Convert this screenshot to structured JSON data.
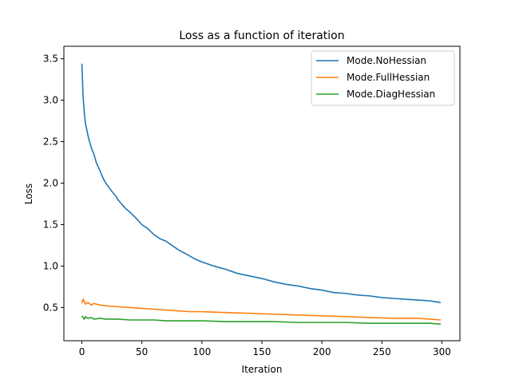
{
  "chart_data": {
    "type": "line",
    "title": "Loss as a function of iteration",
    "xlabel": "Iteration",
    "ylabel": "Loss",
    "xlim": [
      -15,
      315
    ],
    "ylim": [
      0.1,
      3.65
    ],
    "xticks": [
      0,
      50,
      100,
      150,
      200,
      250,
      300
    ],
    "yticks": [
      0.5,
      1.0,
      1.5,
      2.0,
      2.5,
      3.0,
      3.5
    ],
    "xtick_labels": [
      "0",
      "50",
      "100",
      "150",
      "200",
      "250",
      "300"
    ],
    "ytick_labels": [
      "0.5",
      "1.0",
      "1.5",
      "2.0",
      "2.5",
      "3.0",
      "3.5"
    ],
    "grid": false,
    "legend_position": "top-right",
    "series": [
      {
        "name": "Mode.NoHessian",
        "color": "#1f77b4",
        "x": [
          0,
          1,
          2,
          3,
          4,
          5,
          6,
          8,
          10,
          12,
          15,
          18,
          20,
          22,
          25,
          28,
          30,
          33,
          36,
          40,
          45,
          50,
          55,
          60,
          65,
          70,
          75,
          80,
          85,
          90,
          95,
          100,
          110,
          120,
          130,
          140,
          150,
          160,
          170,
          180,
          190,
          200,
          210,
          220,
          230,
          240,
          250,
          260,
          270,
          280,
          290,
          295,
          299
        ],
        "y": [
          3.44,
          3.05,
          2.85,
          2.72,
          2.65,
          2.58,
          2.52,
          2.42,
          2.35,
          2.25,
          2.15,
          2.05,
          2.0,
          1.96,
          1.9,
          1.85,
          1.8,
          1.75,
          1.7,
          1.65,
          1.58,
          1.5,
          1.45,
          1.38,
          1.33,
          1.3,
          1.25,
          1.2,
          1.16,
          1.12,
          1.08,
          1.05,
          1.0,
          0.96,
          0.91,
          0.88,
          0.85,
          0.81,
          0.78,
          0.76,
          0.73,
          0.71,
          0.68,
          0.67,
          0.65,
          0.64,
          0.62,
          0.61,
          0.6,
          0.59,
          0.58,
          0.57,
          0.56
        ]
      },
      {
        "name": "Mode.FullHessian",
        "color": "#ff7f0e",
        "x": [
          0,
          1,
          2,
          3,
          5,
          8,
          10,
          15,
          20,
          30,
          40,
          50,
          60,
          70,
          80,
          90,
          100,
          120,
          140,
          160,
          180,
          200,
          220,
          240,
          260,
          280,
          290,
          299
        ],
        "y": [
          0.55,
          0.6,
          0.58,
          0.54,
          0.56,
          0.53,
          0.55,
          0.53,
          0.52,
          0.51,
          0.5,
          0.49,
          0.48,
          0.47,
          0.46,
          0.45,
          0.45,
          0.44,
          0.43,
          0.42,
          0.41,
          0.4,
          0.39,
          0.38,
          0.37,
          0.37,
          0.36,
          0.35
        ]
      },
      {
        "name": "Mode.DiagHessian",
        "color": "#2ca02c",
        "x": [
          0,
          1,
          2,
          3,
          5,
          8,
          10,
          15,
          20,
          30,
          40,
          50,
          60,
          70,
          80,
          90,
          100,
          120,
          140,
          160,
          180,
          200,
          220,
          240,
          260,
          280,
          290,
          299
        ],
        "y": [
          0.4,
          0.38,
          0.36,
          0.39,
          0.37,
          0.38,
          0.36,
          0.37,
          0.36,
          0.36,
          0.35,
          0.35,
          0.35,
          0.34,
          0.34,
          0.34,
          0.34,
          0.33,
          0.33,
          0.33,
          0.32,
          0.32,
          0.32,
          0.31,
          0.31,
          0.31,
          0.31,
          0.3
        ]
      }
    ]
  }
}
